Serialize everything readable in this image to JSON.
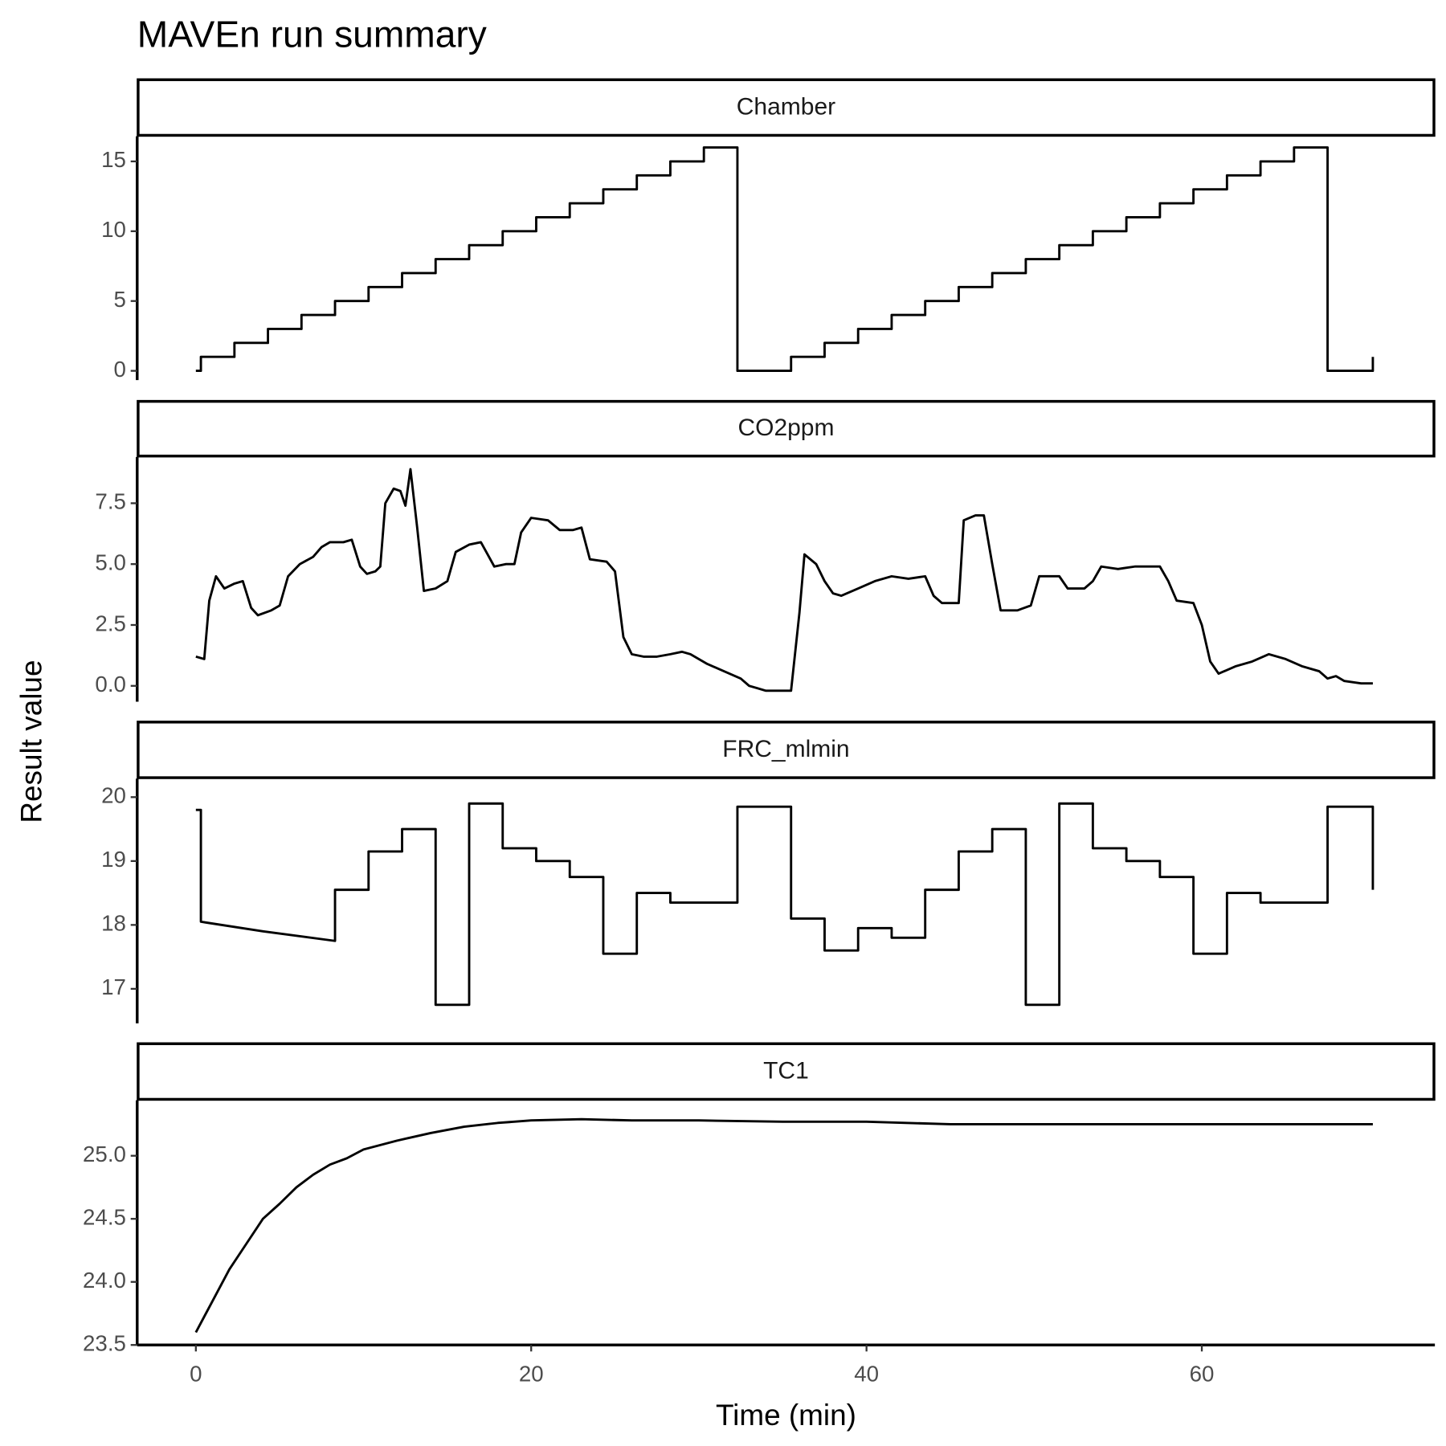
{
  "title": "MAVEn run summary",
  "y_label": "Result value",
  "chart_data": [
    {
      "type": "line",
      "title": "Chamber",
      "color": "#000000",
      "x": [
        0,
        0.3,
        0.3,
        2.3,
        2.3,
        4.3,
        4.3,
        6.3,
        6.3,
        8.3,
        8.3,
        10.3,
        10.3,
        12.3,
        12.3,
        14.3,
        14.3,
        16.3,
        16.3,
        18.3,
        18.3,
        20.3,
        20.3,
        22.3,
        22.3,
        24.3,
        24.3,
        26.3,
        26.3,
        28.3,
        28.3,
        30.3,
        30.3,
        32.3,
        32.3,
        35.5,
        35.5,
        37.5,
        37.5,
        39.5,
        39.5,
        41.5,
        41.5,
        43.5,
        43.5,
        45.5,
        45.5,
        47.5,
        47.5,
        49.5,
        49.5,
        51.5,
        51.5,
        53.5,
        53.5,
        55.5,
        55.5,
        57.5,
        57.5,
        59.5,
        59.5,
        61.5,
        61.5,
        63.5,
        63.5,
        65.5,
        65.5,
        67.5,
        67.5,
        70.2,
        70.2
      ],
      "values": [
        0,
        0,
        1,
        1,
        2,
        2,
        3,
        3,
        4,
        4,
        5,
        5,
        6,
        6,
        7,
        7,
        8,
        8,
        9,
        9,
        10,
        10,
        11,
        11,
        12,
        12,
        13,
        13,
        14,
        14,
        15,
        15,
        16,
        16,
        0,
        0,
        1,
        1,
        2,
        2,
        3,
        3,
        4,
        4,
        5,
        5,
        6,
        6,
        7,
        7,
        8,
        8,
        9,
        9,
        10,
        10,
        11,
        11,
        12,
        12,
        13,
        13,
        14,
        14,
        15,
        15,
        16,
        16,
        0,
        0,
        1
      ],
      "xlim": [
        -3.5,
        73.9
      ],
      "ylim": [
        -0.66,
        16.8
      ],
      "yticks": [
        0,
        5,
        10,
        15
      ]
    },
    {
      "type": "line",
      "title": "CO2ppm",
      "color": "#000000",
      "x": [
        0,
        0.5,
        0.8,
        1.2,
        1.7,
        2.3,
        2.8,
        3.3,
        3.7,
        4.5,
        5.0,
        5.5,
        6.2,
        7.0,
        7.5,
        8.0,
        8.8,
        9.3,
        9.8,
        10.2,
        10.7,
        11.0,
        11.3,
        11.8,
        12.2,
        12.5,
        12.8,
        13.2,
        13.6,
        14.3,
        15.0,
        15.5,
        16.3,
        17.0,
        17.4,
        17.8,
        18.5,
        19.0,
        19.4,
        20.0,
        21.0,
        21.7,
        22.5,
        23.0,
        23.5,
        24.5,
        25.0,
        25.5,
        26.0,
        26.7,
        27.5,
        28.3,
        29.0,
        29.5,
        30.5,
        31.5,
        32.5,
        33.0,
        33.5,
        34.0,
        35.0,
        35.5,
        36.0,
        36.3,
        37.0,
        37.5,
        38.0,
        38.5,
        39.5,
        40.5,
        41.5,
        42.5,
        43.5,
        44.0,
        44.5,
        45.5,
        45.8,
        46.5,
        47.0,
        47.5,
        48.0,
        49.0,
        49.8,
        50.3,
        51.5,
        52.0,
        53.0,
        53.5,
        54.0,
        55.0,
        56.0,
        57.5,
        58.0,
        58.5,
        59.5,
        60.0,
        60.5,
        61.0,
        62.0,
        63.0,
        64.0,
        65.0,
        66.0,
        67.0,
        67.5,
        68.0,
        68.5,
        69.5,
        70.2
      ],
      "values": [
        1.2,
        1.1,
        3.5,
        4.5,
        4.0,
        4.2,
        4.3,
        3.2,
        2.9,
        3.1,
        3.3,
        4.5,
        5.0,
        5.3,
        5.7,
        5.9,
        5.9,
        6.0,
        4.9,
        4.6,
        4.7,
        4.9,
        7.5,
        8.1,
        8.0,
        7.4,
        8.9,
        6.5,
        3.9,
        4.0,
        4.3,
        5.5,
        5.8,
        5.9,
        5.4,
        4.9,
        5.0,
        5.0,
        6.3,
        6.9,
        6.8,
        6.4,
        6.4,
        6.5,
        5.2,
        5.1,
        4.7,
        2.0,
        1.3,
        1.2,
        1.2,
        1.3,
        1.4,
        1.3,
        0.9,
        0.6,
        0.3,
        0.0,
        -0.1,
        -0.2,
        -0.2,
        -0.2,
        3.0,
        5.4,
        5.0,
        4.3,
        3.8,
        3.7,
        4.0,
        4.3,
        4.5,
        4.4,
        4.5,
        3.7,
        3.4,
        3.4,
        6.8,
        7.0,
        7.0,
        5.0,
        3.1,
        3.1,
        3.3,
        4.5,
        4.5,
        4.0,
        4.0,
        4.3,
        4.9,
        4.8,
        4.9,
        4.9,
        4.3,
        3.5,
        3.4,
        2.5,
        1.0,
        0.5,
        0.8,
        1.0,
        1.3,
        1.1,
        0.8,
        0.6,
        0.3,
        0.4,
        0.2,
        0.1,
        0.1
      ],
      "xlim": [
        -3.5,
        73.9
      ],
      "ylim": [
        -0.65,
        9.4
      ],
      "yticks": [
        {
          "value": 0,
          "label": "0.0"
        },
        2.5,
        {
          "value": 5,
          "label": "5.0"
        },
        7.5
      ]
    },
    {
      "type": "line",
      "title": "FRC_mlmin",
      "color": "#000000",
      "x": [
        0,
        0.3,
        0.3,
        4.0,
        4.0,
        8.3,
        8.3,
        10.3,
        10.3,
        12.3,
        12.3,
        14.3,
        14.3,
        16.3,
        16.3,
        18.3,
        18.3,
        20.3,
        20.3,
        22.3,
        22.3,
        24.3,
        24.3,
        26.3,
        26.3,
        28.3,
        28.3,
        32.3,
        32.3,
        35.5,
        35.5,
        37.5,
        37.5,
        39.5,
        39.5,
        41.5,
        41.5,
        43.5,
        43.5,
        45.5,
        45.5,
        47.5,
        47.5,
        49.5,
        49.5,
        51.5,
        51.5,
        53.5,
        53.5,
        55.5,
        55.5,
        57.5,
        57.5,
        59.5,
        59.5,
        61.5,
        61.5,
        63.5,
        63.5,
        67.5,
        67.5,
        70.2,
        70.2
      ],
      "values": [
        19.8,
        19.8,
        18.05,
        17.9,
        17.9,
        17.75,
        18.55,
        18.55,
        19.15,
        19.15,
        19.5,
        19.5,
        16.75,
        16.75,
        19.9,
        19.9,
        19.2,
        19.2,
        19.0,
        19.0,
        18.75,
        18.75,
        17.55,
        17.55,
        18.5,
        18.5,
        18.35,
        18.35,
        19.85,
        19.85,
        18.1,
        18.1,
        17.6,
        17.6,
        17.95,
        17.95,
        17.8,
        17.8,
        18.55,
        18.55,
        19.15,
        19.15,
        19.5,
        19.5,
        16.75,
        16.75,
        19.9,
        19.9,
        19.2,
        19.2,
        19.0,
        19.0,
        18.75,
        18.75,
        17.55,
        17.55,
        18.5,
        18.5,
        18.35,
        18.35,
        19.85,
        19.85,
        18.55
      ],
      "xlim": [
        -3.5,
        73.9
      ],
      "ylim": [
        16.46,
        20.29
      ],
      "yticks": [
        17,
        18,
        19,
        20
      ]
    },
    {
      "type": "line",
      "title": "TC1",
      "color": "#000000",
      "x": [
        0,
        1,
        2,
        3,
        4,
        5,
        6,
        7,
        8,
        9,
        10,
        12,
        14,
        16,
        18,
        20,
        23,
        26,
        30,
        35,
        40,
        45,
        50,
        60,
        70.2
      ],
      "values": [
        23.6,
        23.85,
        24.1,
        24.3,
        24.5,
        24.62,
        24.75,
        24.85,
        24.93,
        24.98,
        25.05,
        25.12,
        25.18,
        25.23,
        25.26,
        25.28,
        25.29,
        25.28,
        25.28,
        25.27,
        25.27,
        25.25,
        25.25,
        25.25,
        25.25
      ],
      "xlim": [
        -3.5,
        73.9
      ],
      "ylim": [
        23.5,
        25.44
      ],
      "yticks": [
        23.5,
        {
          "value": 24,
          "label": "24.0"
        },
        24.5,
        {
          "value": 25,
          "label": "25.0"
        }
      ],
      "xticks": [
        0,
        20,
        40,
        60
      ],
      "x_label": "Time (min)"
    }
  ]
}
